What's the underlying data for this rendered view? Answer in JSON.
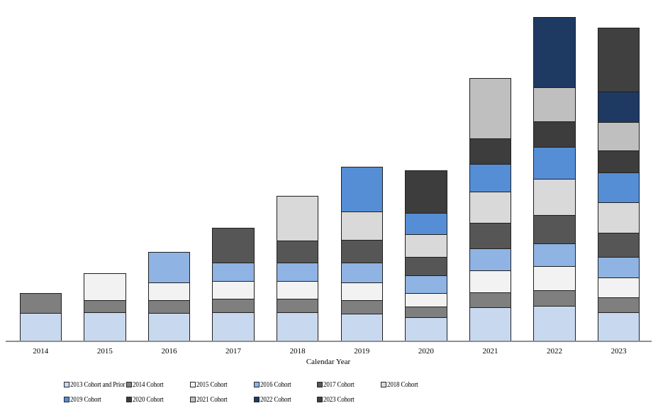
{
  "chart_data": {
    "type": "bar",
    "stacked": true,
    "title": "",
    "xlabel": "Calendar Year",
    "ylabel": "",
    "y_axis_visible": false,
    "grid": false,
    "legend_position": "bottom",
    "ylim": [
      0,
      470
    ],
    "categories": [
      "2014",
      "2015",
      "2016",
      "2017",
      "2018",
      "2019",
      "2020",
      "2021",
      "2022",
      "2023"
    ],
    "series": [
      {
        "name": "2013 Cohort and Prior",
        "color": "#c8d8ef",
        "values": [
          39,
          40,
          39,
          40,
          40,
          38,
          33,
          47,
          49,
          40
        ]
      },
      {
        "name": "2014 Cohort",
        "color": "#7f7f7f",
        "values": [
          28,
          17,
          18,
          19,
          19,
          19,
          15,
          21,
          22,
          21
        ]
      },
      {
        "name": "2015 Cohort",
        "color": "#f2f2f2",
        "values": [
          0,
          38,
          25,
          25,
          25,
          25,
          19,
          31,
          34,
          28
        ]
      },
      {
        "name": "2016 Cohort",
        "color": "#8fb3e3",
        "values": [
          0,
          0,
          43,
          26,
          26,
          28,
          25,
          31,
          32,
          29
        ]
      },
      {
        "name": "2017 Cohort",
        "color": "#565656",
        "values": [
          0,
          0,
          0,
          49,
          31,
          32,
          26,
          36,
          40,
          34
        ]
      },
      {
        "name": "2018 Cohort",
        "color": "#d9d9d9",
        "values": [
          0,
          0,
          0,
          0,
          63,
          40,
          32,
          44,
          51,
          43
        ]
      },
      {
        "name": "2019 Cohort",
        "color": "#558ed5",
        "values": [
          0,
          0,
          0,
          0,
          0,
          63,
          30,
          39,
          45,
          42
        ]
      },
      {
        "name": "2020 Cohort",
        "color": "#3d3d3d",
        "values": [
          0,
          0,
          0,
          0,
          0,
          0,
          60,
          36,
          36,
          31
        ]
      },
      {
        "name": "2021 Cohort",
        "color": "#bfbfbf",
        "values": [
          0,
          0,
          0,
          0,
          0,
          0,
          0,
          85,
          48,
          40
        ]
      },
      {
        "name": "2022 Cohort",
        "color": "#1e3a63",
        "values": [
          0,
          0,
          0,
          0,
          0,
          0,
          0,
          0,
          99,
          43
        ]
      },
      {
        "name": "2023 Cohort",
        "color": "#404040",
        "values": [
          0,
          0,
          0,
          0,
          0,
          0,
          0,
          0,
          0,
          90
        ]
      }
    ]
  }
}
